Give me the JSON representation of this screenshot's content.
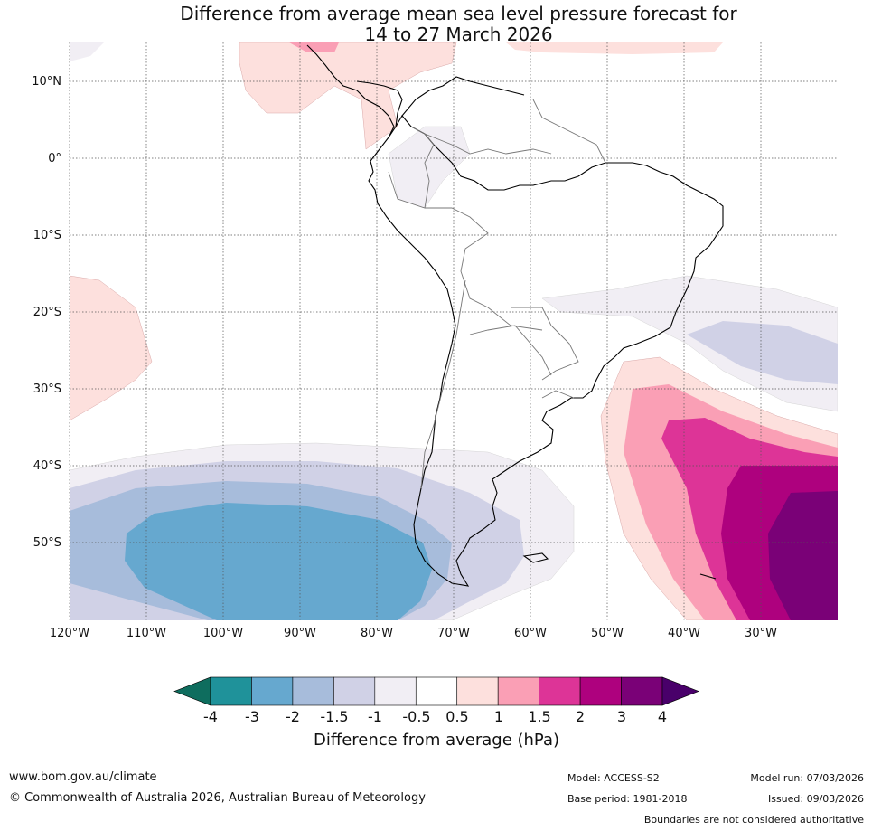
{
  "title": {
    "line1": "Difference from average mean sea level pressure forecast for",
    "line2": "14 to 27 March 2026"
  },
  "latitude_labels": [
    "10°N",
    "0°",
    "10°S",
    "20°S",
    "30°S",
    "40°S",
    "50°S"
  ],
  "longitude_labels": [
    "120°W",
    "110°W",
    "100°W",
    "90°W",
    "80°W",
    "70°W",
    "60°W",
    "50°W",
    "40°W",
    "30°W"
  ],
  "colorbar": {
    "title": "Difference from average (hPa)",
    "tick_labels": [
      "-4",
      "-3",
      "-2",
      "-1.5",
      "-1",
      "-0.5",
      "0.5",
      "1",
      "1.5",
      "2",
      "3",
      "4"
    ],
    "colors": [
      "#0e6d5e",
      "#1f929a",
      "#66a8cf",
      "#a7bcdb",
      "#d0d1e6",
      "#f1eef4",
      "#ffffff",
      "#fde0dd",
      "#fa9fb5",
      "#dd3497",
      "#ae017e",
      "#7a0177",
      "#49006a"
    ]
  },
  "footer": {
    "url": "www.bom.gov.au/climate",
    "copyright": "© Commonwealth of Australia 2026, Australian Bureau of Meteorology",
    "model": "Model: ACCESS-S2",
    "base_period": "Base period: 1981-2018",
    "model_run": "Model run: 07/03/2026",
    "issued": "Issued: 09/03/2026",
    "disclaimer": "Boundaries are not considered authoritative"
  }
}
